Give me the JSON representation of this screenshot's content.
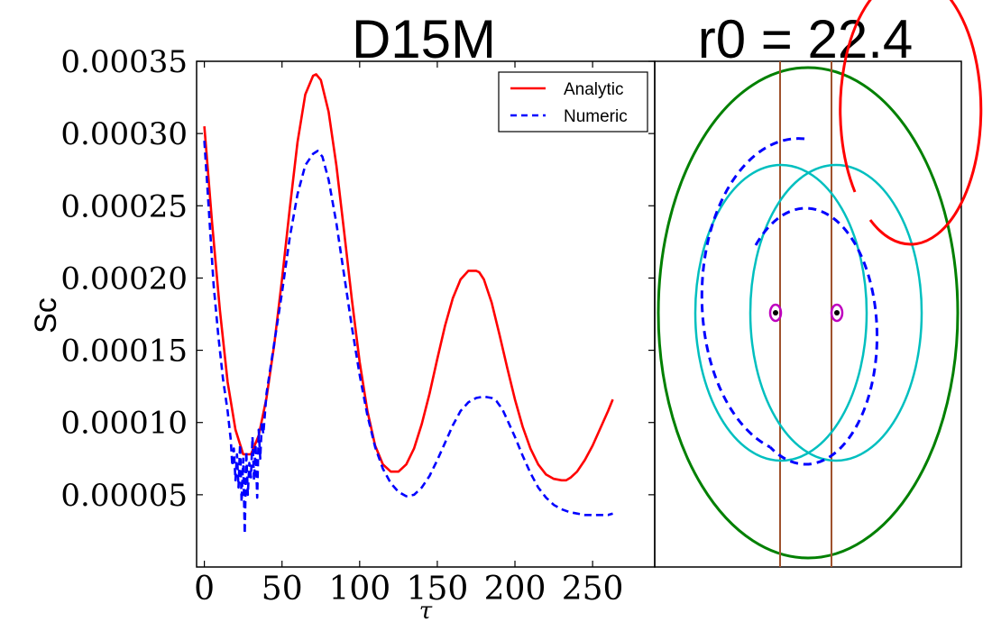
{
  "colors": {
    "analytic": "#ff0000",
    "numeric": "#0000ff",
    "green": "#008000",
    "cyan": "#00bfbf",
    "brown": "#a0522d",
    "magenta": "#bf00bf",
    "black": "#000000"
  },
  "chart_data": [
    {
      "type": "line",
      "title": "D15M",
      "xlabel": "τ",
      "ylabel": "Sc",
      "xlim": [
        -5,
        290
      ],
      "ylim": [
        0.0,
        0.00035
      ],
      "xticks": [
        0,
        50,
        100,
        150,
        200,
        250
      ],
      "xtick_labels": [
        "0",
        "50",
        "100",
        "150",
        "200",
        "250"
      ],
      "yticks": [
        5e-05,
        0.0001,
        0.00015,
        0.0002,
        0.00025,
        0.0003,
        0.00035
      ],
      "ytick_labels": [
        "0.00005",
        "0.00010",
        "0.00015",
        "0.00020",
        "0.00025",
        "0.00030",
        "0.00035"
      ],
      "legend": {
        "placement": "top-right",
        "entries": [
          "Analytic",
          "Numeric"
        ]
      },
      "series": [
        {
          "name": "Analytic",
          "style": "solid",
          "x": [
            0,
            5,
            10,
            15,
            20,
            25,
            30,
            35,
            40,
            45,
            50,
            55,
            60,
            65,
            70,
            72,
            75,
            80,
            85,
            90,
            95,
            100,
            105,
            110,
            115,
            120,
            125,
            130,
            135,
            140,
            145,
            150,
            155,
            160,
            165,
            170,
            175,
            177,
            180,
            185,
            190,
            195,
            200,
            205,
            210,
            215,
            220,
            225,
            230,
            233,
            236,
            240,
            245,
            250,
            255,
            260,
            263
          ],
          "y": [
            0.000305,
            0.000238,
            0.000178,
            0.000128,
            9.5e-05,
            7.8e-05,
            7.8e-05,
            9.1e-05,
            0.000117,
            0.000154,
            0.000199,
            0.000248,
            0.000294,
            0.000327,
            0.00034,
            0.000341,
            0.000337,
            0.000315,
            0.000278,
            0.000232,
            0.000185,
            0.000142,
            0.000108,
            8.4e-05,
            7.1e-05,
            6.6e-05,
            6.6e-05,
            7.1e-05,
            8.2e-05,
            9.9e-05,
            0.00012,
            0.000144,
            0.000167,
            0.000186,
            0.000199,
            0.000205,
            0.000205,
            0.000204,
            0.000199,
            0.000183,
            0.000161,
            0.000138,
            0.000116,
            9.7e-05,
            8.2e-05,
            7.1e-05,
            6.4e-05,
            6.1e-05,
            6e-05,
            6e-05,
            6.2e-05,
            6.6e-05,
            7.4e-05,
            8.4e-05,
            9.6e-05,
            0.000108,
            0.000116
          ]
        },
        {
          "name": "Numeric",
          "style": "dashed",
          "x": [
            0,
            3,
            6,
            9,
            12,
            15,
            17,
            18,
            19,
            20,
            21,
            22,
            23,
            24,
            25,
            26,
            27,
            28,
            29,
            30,
            31,
            32,
            33,
            34,
            35,
            36,
            37,
            38,
            40,
            45,
            50,
            55,
            60,
            65,
            70,
            73,
            76,
            80,
            85,
            90,
            95,
            100,
            105,
            110,
            115,
            120,
            125,
            130,
            135,
            140,
            145,
            150,
            155,
            160,
            165,
            170,
            175,
            180,
            185,
            188,
            192,
            195,
            200,
            205,
            210,
            215,
            220,
            225,
            230,
            235,
            240,
            245,
            250,
            255,
            260,
            263
          ],
          "y": [
            0.000295,
            0.000245,
            0.000195,
            0.00016,
            0.00013,
            0.000108,
            8.8e-05,
            7e-05,
            8.2e-05,
            6e-05,
            7.8e-05,
            5.5e-05,
            8.5e-05,
            4.5e-05,
            7.5e-05,
            2.3e-05,
            8e-05,
            5e-05,
            7.2e-05,
            6.2e-05,
            9e-05,
            6e-05,
            8.5e-05,
            4.8e-05,
            9.5e-05,
            7.5e-05,
            0.0001,
            9.2e-05,
            0.00012,
            0.000155,
            0.00019,
            0.000228,
            0.000258,
            0.000278,
            0.000286,
            0.000288,
            0.000284,
            0.000268,
            0.000238,
            0.000202,
            0.000166,
            0.000133,
            0.000105,
            8.3e-05,
            6.8e-05,
            5.8e-05,
            5.2e-05,
            4.9e-05,
            5e-05,
            5.5e-05,
            6.3e-05,
            7.4e-05,
            8.6e-05,
            9.8e-05,
            0.000108,
            0.000114,
            0.000117,
            0.000118,
            0.000117,
            0.000115,
            0.000109,
            0.000102,
            9e-05,
            7.7e-05,
            6.5e-05,
            5.5e-05,
            4.8e-05,
            4.3e-05,
            4e-05,
            3.8e-05,
            3.7e-05,
            3.6e-05,
            3.6e-05,
            3.6e-05,
            3.6e-05,
            3.7e-05
          ]
        }
      ]
    },
    {
      "type": "diagram",
      "title": "r0 = 22.4"
    }
  ]
}
